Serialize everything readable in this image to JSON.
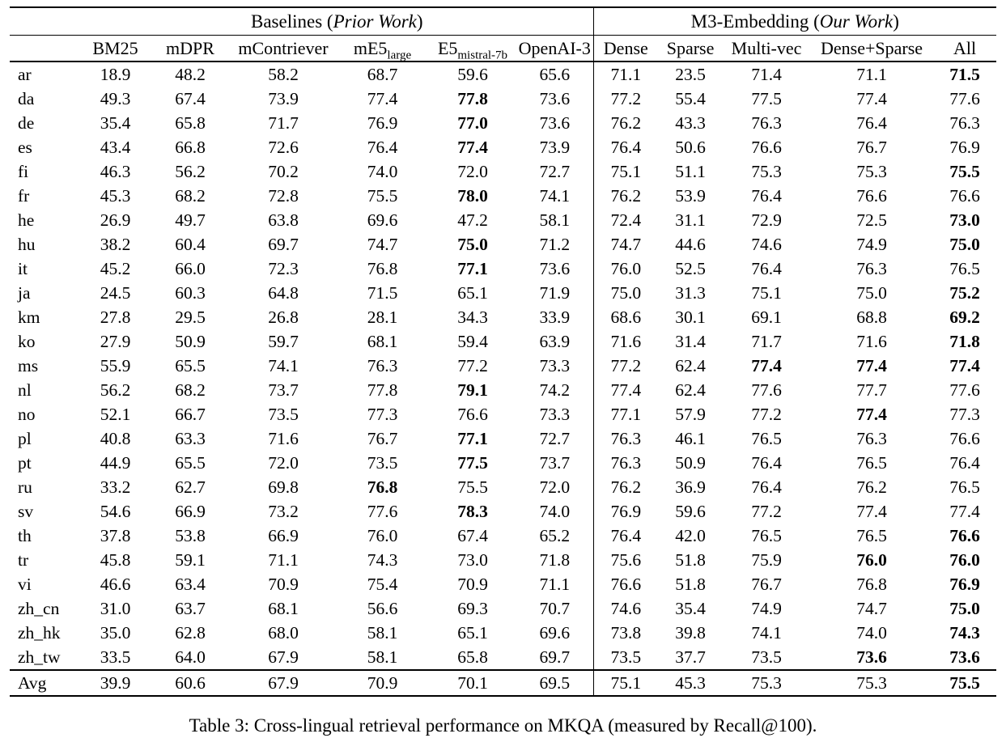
{
  "caption": "Table 3: Cross-lingual retrieval performance on MKQA (measured by Recall@100).",
  "table": {
    "group_headers": [
      {
        "prefix": "Baselines (",
        "italic": "Prior Work",
        "suffix": ")",
        "colspan": 6
      },
      {
        "prefix": "M3-Embedding (",
        "italic": "Our Work",
        "suffix": ")",
        "colspan": 5
      }
    ],
    "column_headers": [
      {
        "main": "BM25",
        "sub": ""
      },
      {
        "main": "mDPR",
        "sub": ""
      },
      {
        "main": "mContriever",
        "sub": ""
      },
      {
        "main": "mE5",
        "sub": "large"
      },
      {
        "main": "E5",
        "sub": "mistral-7b"
      },
      {
        "main": "OpenAI-3",
        "sub": ""
      },
      {
        "main": "Dense",
        "sub": ""
      },
      {
        "main": "Sparse",
        "sub": ""
      },
      {
        "main": "Multi-vec",
        "sub": ""
      },
      {
        "main": "Dense+Sparse",
        "sub": ""
      },
      {
        "main": "All",
        "sub": ""
      }
    ],
    "rows": [
      {
        "lang": "ar",
        "values": [
          "18.9",
          "48.2",
          "58.2",
          "68.7",
          "59.6",
          "65.6",
          "71.1",
          "23.5",
          "71.4",
          "71.1",
          "71.5"
        ],
        "bold": [
          10
        ]
      },
      {
        "lang": "da",
        "values": [
          "49.3",
          "67.4",
          "73.9",
          "77.4",
          "77.8",
          "73.6",
          "77.2",
          "55.4",
          "77.5",
          "77.4",
          "77.6"
        ],
        "bold": [
          4
        ]
      },
      {
        "lang": "de",
        "values": [
          "35.4",
          "65.8",
          "71.7",
          "76.9",
          "77.0",
          "73.6",
          "76.2",
          "43.3",
          "76.3",
          "76.4",
          "76.3"
        ],
        "bold": [
          4
        ]
      },
      {
        "lang": "es",
        "values": [
          "43.4",
          "66.8",
          "72.6",
          "76.4",
          "77.4",
          "73.9",
          "76.4",
          "50.6",
          "76.6",
          "76.7",
          "76.9"
        ],
        "bold": [
          4
        ]
      },
      {
        "lang": "fi",
        "values": [
          "46.3",
          "56.2",
          "70.2",
          "74.0",
          "72.0",
          "72.7",
          "75.1",
          "51.1",
          "75.3",
          "75.3",
          "75.5"
        ],
        "bold": [
          10
        ]
      },
      {
        "lang": "fr",
        "values": [
          "45.3",
          "68.2",
          "72.8",
          "75.5",
          "78.0",
          "74.1",
          "76.2",
          "53.9",
          "76.4",
          "76.6",
          "76.6"
        ],
        "bold": [
          4
        ]
      },
      {
        "lang": "he",
        "values": [
          "26.9",
          "49.7",
          "63.8",
          "69.6",
          "47.2",
          "58.1",
          "72.4",
          "31.1",
          "72.9",
          "72.5",
          "73.0"
        ],
        "bold": [
          10
        ]
      },
      {
        "lang": "hu",
        "values": [
          "38.2",
          "60.4",
          "69.7",
          "74.7",
          "75.0",
          "71.2",
          "74.7",
          "44.6",
          "74.6",
          "74.9",
          "75.0"
        ],
        "bold": [
          4,
          10
        ]
      },
      {
        "lang": "it",
        "values": [
          "45.2",
          "66.0",
          "72.3",
          "76.8",
          "77.1",
          "73.6",
          "76.0",
          "52.5",
          "76.4",
          "76.3",
          "76.5"
        ],
        "bold": [
          4
        ]
      },
      {
        "lang": "ja",
        "values": [
          "24.5",
          "60.3",
          "64.8",
          "71.5",
          "65.1",
          "71.9",
          "75.0",
          "31.3",
          "75.1",
          "75.0",
          "75.2"
        ],
        "bold": [
          10
        ]
      },
      {
        "lang": "km",
        "values": [
          "27.8",
          "29.5",
          "26.8",
          "28.1",
          "34.3",
          "33.9",
          "68.6",
          "30.1",
          "69.1",
          "68.8",
          "69.2"
        ],
        "bold": [
          10
        ]
      },
      {
        "lang": "ko",
        "values": [
          "27.9",
          "50.9",
          "59.7",
          "68.1",
          "59.4",
          "63.9",
          "71.6",
          "31.4",
          "71.7",
          "71.6",
          "71.8"
        ],
        "bold": [
          10
        ]
      },
      {
        "lang": "ms",
        "values": [
          "55.9",
          "65.5",
          "74.1",
          "76.3",
          "77.2",
          "73.3",
          "77.2",
          "62.4",
          "77.4",
          "77.4",
          "77.4"
        ],
        "bold": [
          8,
          9,
          10
        ]
      },
      {
        "lang": "nl",
        "values": [
          "56.2",
          "68.2",
          "73.7",
          "77.8",
          "79.1",
          "74.2",
          "77.4",
          "62.4",
          "77.6",
          "77.7",
          "77.6"
        ],
        "bold": [
          4
        ]
      },
      {
        "lang": "no",
        "values": [
          "52.1",
          "66.7",
          "73.5",
          "77.3",
          "76.6",
          "73.3",
          "77.1",
          "57.9",
          "77.2",
          "77.4",
          "77.3"
        ],
        "bold": [
          9
        ]
      },
      {
        "lang": "pl",
        "values": [
          "40.8",
          "63.3",
          "71.6",
          "76.7",
          "77.1",
          "72.7",
          "76.3",
          "46.1",
          "76.5",
          "76.3",
          "76.6"
        ],
        "bold": [
          4
        ]
      },
      {
        "lang": "pt",
        "values": [
          "44.9",
          "65.5",
          "72.0",
          "73.5",
          "77.5",
          "73.7",
          "76.3",
          "50.9",
          "76.4",
          "76.5",
          "76.4"
        ],
        "bold": [
          4
        ]
      },
      {
        "lang": "ru",
        "values": [
          "33.2",
          "62.7",
          "69.8",
          "76.8",
          "75.5",
          "72.0",
          "76.2",
          "36.9",
          "76.4",
          "76.2",
          "76.5"
        ],
        "bold": [
          3
        ]
      },
      {
        "lang": "sv",
        "values": [
          "54.6",
          "66.9",
          "73.2",
          "77.6",
          "78.3",
          "74.0",
          "76.9",
          "59.6",
          "77.2",
          "77.4",
          "77.4"
        ],
        "bold": [
          4
        ]
      },
      {
        "lang": "th",
        "values": [
          "37.8",
          "53.8",
          "66.9",
          "76.0",
          "67.4",
          "65.2",
          "76.4",
          "42.0",
          "76.5",
          "76.5",
          "76.6"
        ],
        "bold": [
          10
        ]
      },
      {
        "lang": "tr",
        "values": [
          "45.8",
          "59.1",
          "71.1",
          "74.3",
          "73.0",
          "71.8",
          "75.6",
          "51.8",
          "75.9",
          "76.0",
          "76.0"
        ],
        "bold": [
          9,
          10
        ]
      },
      {
        "lang": "vi",
        "values": [
          "46.6",
          "63.4",
          "70.9",
          "75.4",
          "70.9",
          "71.1",
          "76.6",
          "51.8",
          "76.7",
          "76.8",
          "76.9"
        ],
        "bold": [
          10
        ]
      },
      {
        "lang": "zh_cn",
        "values": [
          "31.0",
          "63.7",
          "68.1",
          "56.6",
          "69.3",
          "70.7",
          "74.6",
          "35.4",
          "74.9",
          "74.7",
          "75.0"
        ],
        "bold": [
          10
        ]
      },
      {
        "lang": "zh_hk",
        "values": [
          "35.0",
          "62.8",
          "68.0",
          "58.1",
          "65.1",
          "69.6",
          "73.8",
          "39.8",
          "74.1",
          "74.0",
          "74.3"
        ],
        "bold": [
          10
        ]
      },
      {
        "lang": "zh_tw",
        "values": [
          "33.5",
          "64.0",
          "67.9",
          "58.1",
          "65.8",
          "69.7",
          "73.5",
          "37.7",
          "73.5",
          "73.6",
          "73.6"
        ],
        "bold": [
          9,
          10
        ]
      }
    ],
    "avg_row": {
      "lang": "Avg",
      "values": [
        "39.9",
        "60.6",
        "67.9",
        "70.9",
        "70.1",
        "69.5",
        "75.1",
        "45.3",
        "75.3",
        "75.3",
        "75.5"
      ],
      "bold": [
        10
      ]
    }
  }
}
